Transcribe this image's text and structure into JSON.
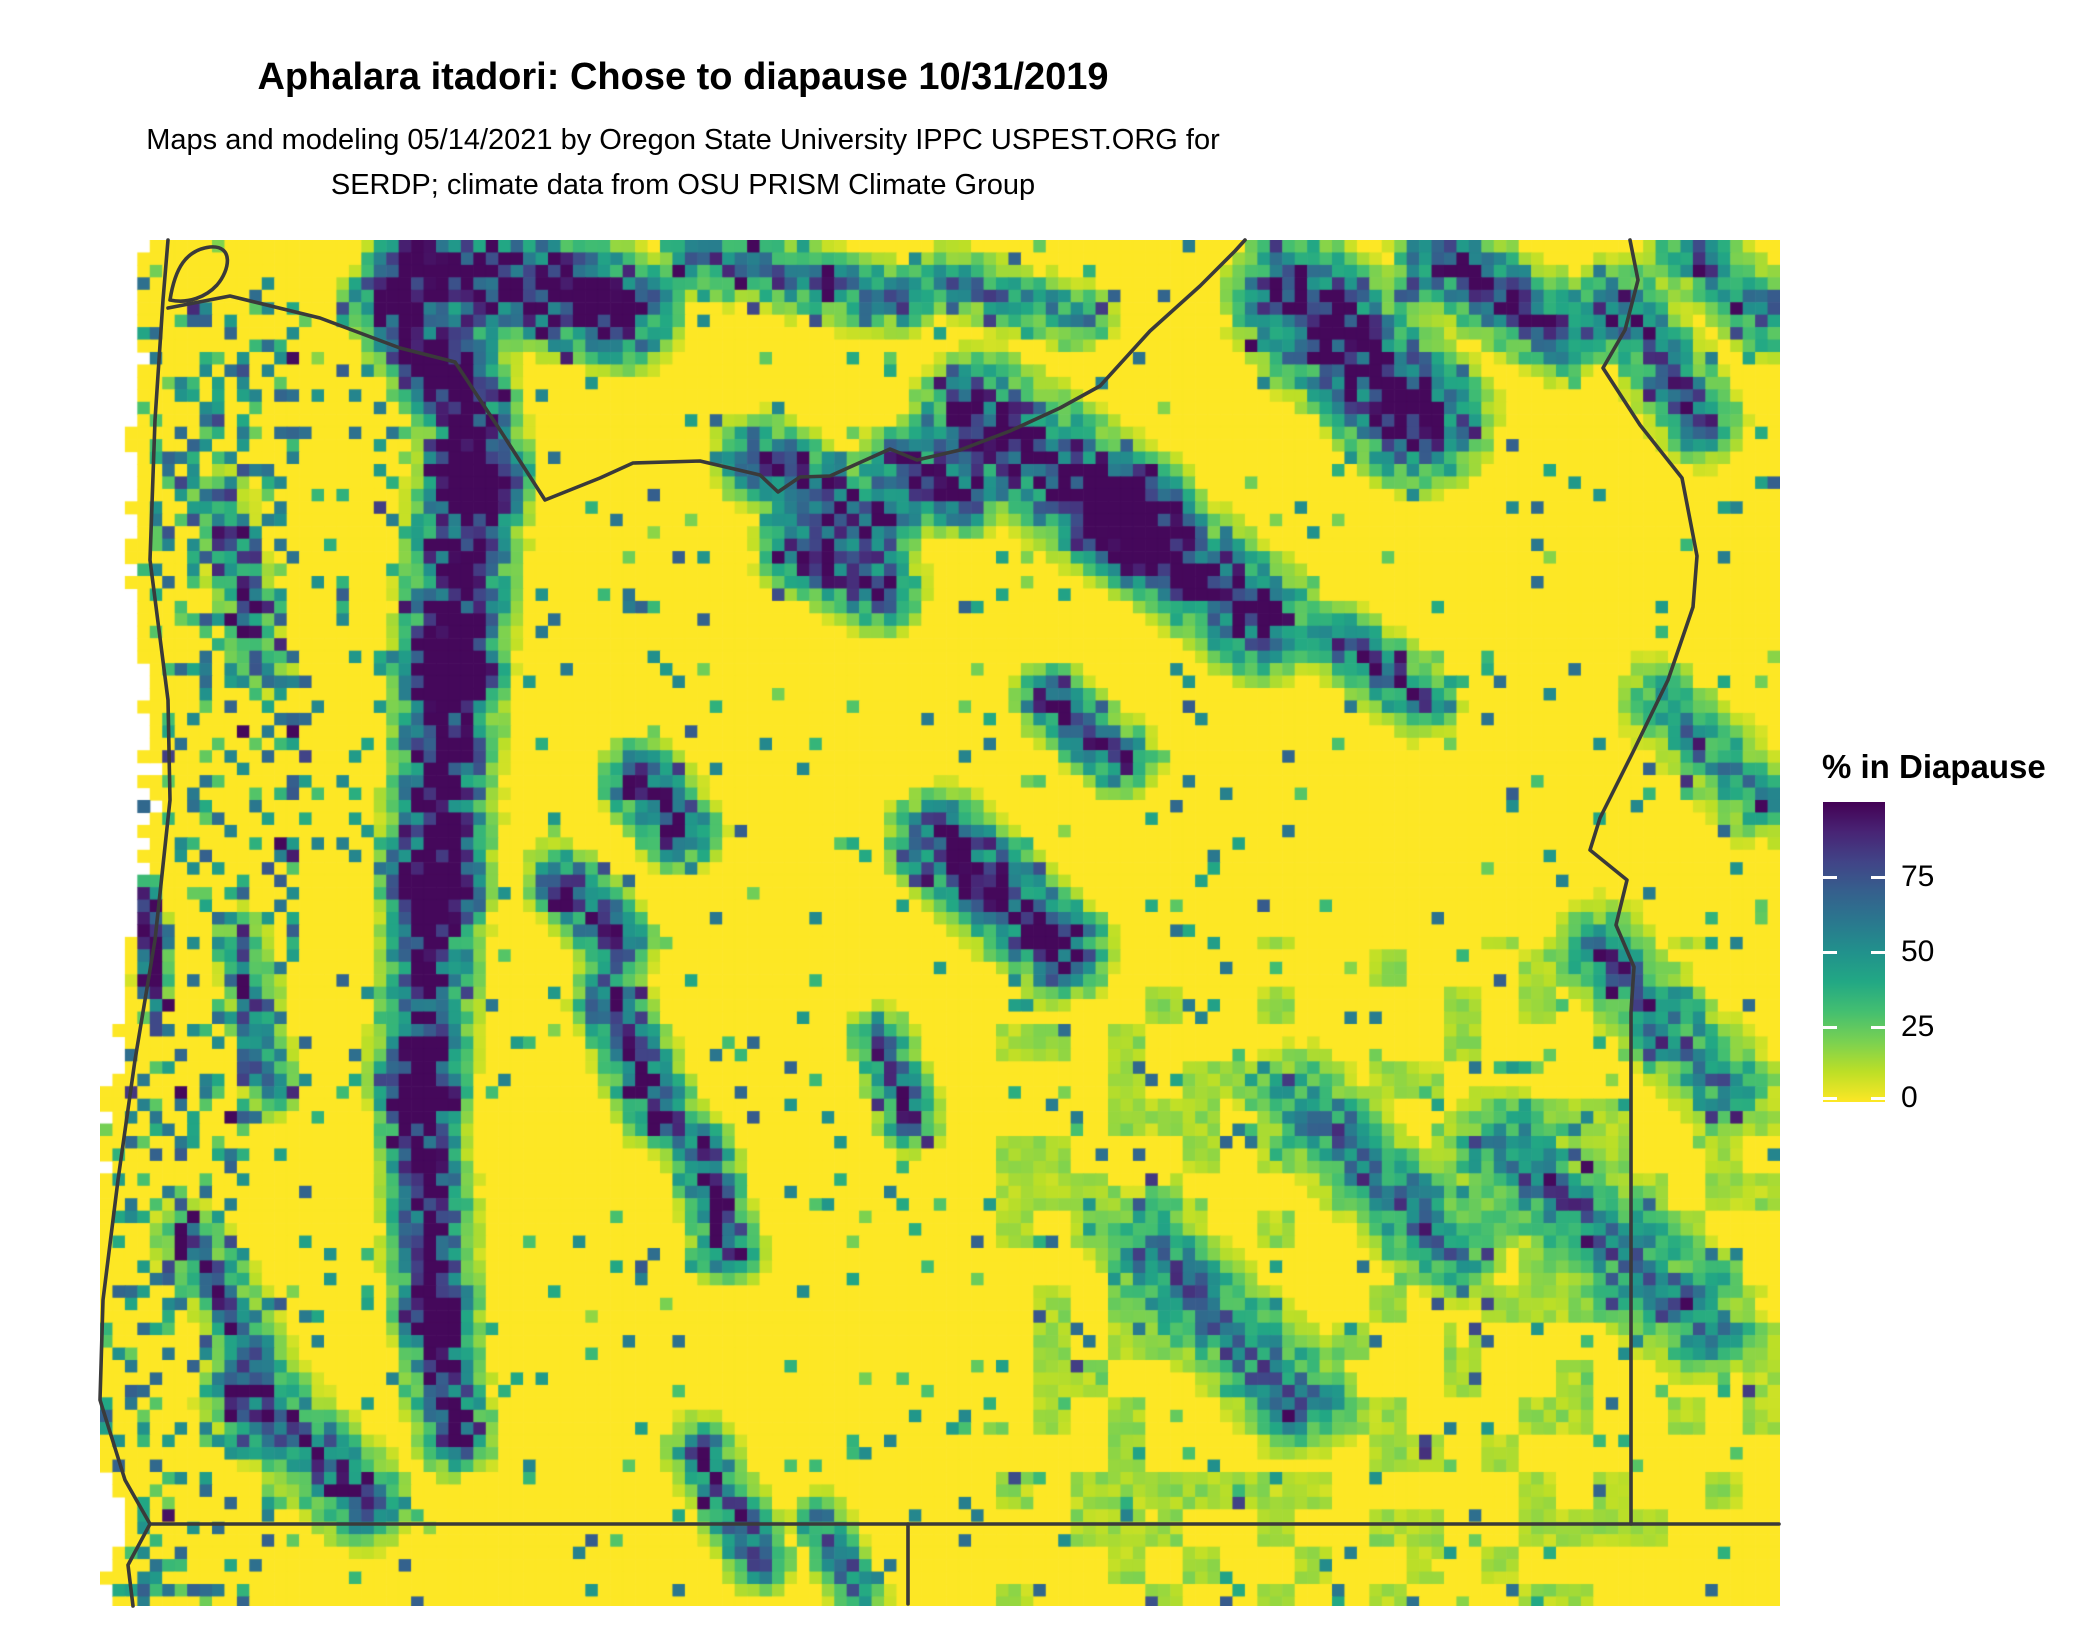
{
  "title": "Aphalara itadori: Chose to diapause 10/31/2019",
  "subtitle": [
    "Maps and modeling 05/14/2021 by Oregon State University IPPC USPEST.ORG for",
    "SERDP; climate data from OSU PRISM Climate Group"
  ],
  "legend": {
    "title": "% in Diapause",
    "tick_labels": [
      "75",
      "50",
      "25",
      "0"
    ],
    "tick_values": [
      75,
      50,
      25,
      0
    ],
    "domain": [
      0,
      100
    ]
  },
  "colors": {
    "background": "#ffffff",
    "ocean_na": "#ffffff",
    "boundary_line": "#3a3a3a",
    "high_yellow": "#fde725",
    "low_purple": "#440154",
    "viridis_stops": [
      "#440154",
      "#482475",
      "#414487",
      "#35608d",
      "#2a788e",
      "#21918c",
      "#22a884",
      "#44bf70",
      "#7ad151",
      "#bddf26",
      "#fde725"
    ]
  },
  "chart_data": {
    "type": "heatmap",
    "title": "Aphalara itadori: Chose to diapause 10/31/2019",
    "subtitle": "Maps and modeling 05/14/2021 by Oregon State University IPPC USPEST.ORG for SERDP; climate data from OSU PRISM Climate Group",
    "legend_title": "% in Diapause",
    "colormap": "viridis",
    "value_domain": [
      0,
      100
    ],
    "legend_ticks": [
      0,
      25,
      50,
      75
    ],
    "legend_orientation": "vertical, yellow (≈100) at top, dark purple (0) at bottom, white tick dashes on bar edges",
    "region": "Oregon (USA) and adjacent areas; coastline, Columbia River, Snake River and straight state border lines drawn in dark gray; ocean/no-data shown white",
    "value_pattern": "predominantly ≈95-100% (bright yellow) at low elevations; values near 0% (dark purple) with teal/green fringes along the Cascade Range, around Mt. Hood, the Blue and Wallowa Mountains, Steens Mountain and other highlands; scattered green-teal speckle along the Coast Range and across the southeast"
  }
}
